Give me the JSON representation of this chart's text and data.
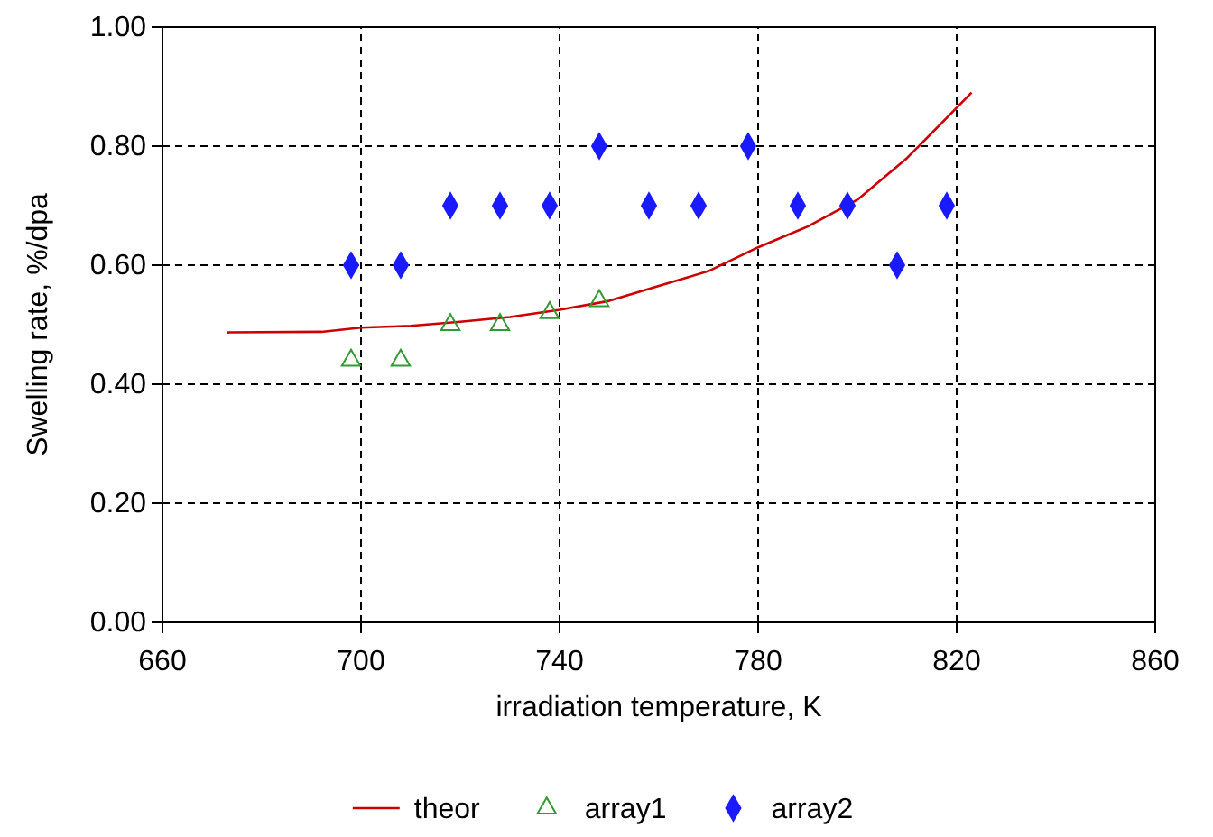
{
  "chart_data": {
    "type": "scatter",
    "xlabel": "irradiation temperature, K",
    "ylabel": "Swelling rate, %/dpa",
    "xlim": [
      660,
      860
    ],
    "xticks": [
      660,
      700,
      740,
      780,
      820,
      860
    ],
    "ylim": [
      0,
      1
    ],
    "yticks": [
      {
        "value": 0,
        "label": "0.00"
      },
      {
        "value": 0.2,
        "label": "0.20"
      },
      {
        "value": 0.4,
        "label": "0.40"
      },
      {
        "value": 0.6,
        "label": "0.60"
      },
      {
        "value": 0.8,
        "label": "0.80"
      },
      {
        "value": 1,
        "label": "1.00"
      }
    ],
    "grid": true,
    "legend": "bottom",
    "series": [
      {
        "name": "theor",
        "type": "line",
        "marker": "none",
        "color": "#cc0000",
        "x": [
          673,
          692,
          700,
          710,
          720,
          730,
          740,
          750,
          760,
          770,
          780,
          790,
          800,
          810,
          823
        ],
        "values": [
          0.487,
          0.488,
          0.495,
          0.498,
          0.505,
          0.513,
          0.525,
          0.54,
          0.565,
          0.59,
          0.63,
          0.665,
          0.71,
          0.78,
          0.89
        ]
      },
      {
        "name": "array1",
        "marker": "triangle",
        "color": "#339933",
        "x": [
          698,
          708,
          718,
          728,
          738,
          748
        ],
        "values": [
          0.44,
          0.44,
          0.5,
          0.5,
          0.52,
          0.54
        ]
      },
      {
        "name": "array2",
        "marker": "diamond",
        "color": "#1a1aff",
        "x": [
          698,
          708,
          718,
          728,
          738,
          748,
          758,
          768,
          778,
          788,
          798,
          808,
          818
        ],
        "values": [
          0.6,
          0.6,
          0.7,
          0.7,
          0.7,
          0.8,
          0.7,
          0.7,
          0.8,
          0.7,
          0.7,
          0.6,
          0.7
        ]
      }
    ]
  }
}
